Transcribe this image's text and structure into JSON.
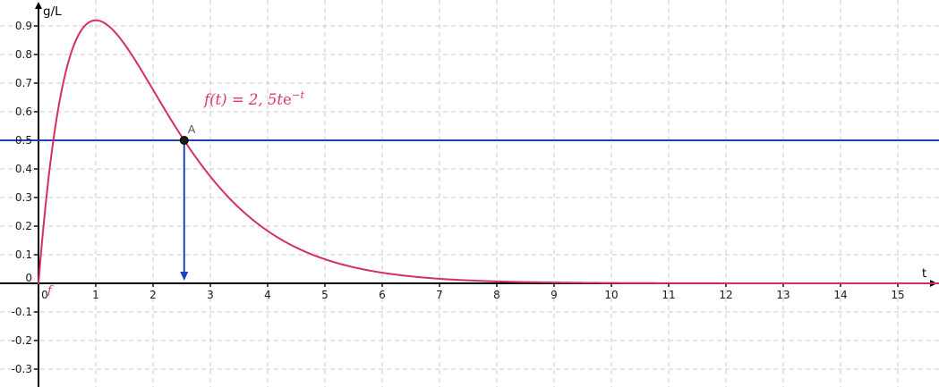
{
  "app": {
    "background": "#ffffff"
  },
  "chart_data": {
    "type": "line",
    "title": "",
    "xlabel": "t",
    "ylabel": "g/L",
    "xlim": [
      -0.67,
      15.72
    ],
    "ylim": [
      -0.363,
      0.98
    ],
    "grid": true,
    "x_ticks": [
      "0",
      "1",
      "2",
      "3",
      "4",
      "5",
      "6",
      "7",
      "8",
      "9",
      "10",
      "11",
      "12",
      "13",
      "14",
      "15"
    ],
    "y_ticks": [
      "-0.3",
      "-0.2",
      "-0.1",
      "0",
      "0.1",
      "0.2",
      "0.3",
      "0.4",
      "0.5",
      "0.6",
      "0.7",
      "0.8",
      "0.9"
    ],
    "series": [
      {
        "name": "f",
        "label": "f(t) = 2, 5te^(-t)",
        "type": "function",
        "amplitude": 2.5,
        "color": "#d5305c",
        "points": [
          [
            0,
            0
          ],
          [
            0.25,
            0.4868
          ],
          [
            0.5,
            0.7582
          ],
          [
            0.75,
            0.8857
          ],
          [
            1,
            0.9197
          ],
          [
            1.25,
            0.8956
          ],
          [
            1.5,
            0.8367
          ],
          [
            1.75,
            0.7598
          ],
          [
            2,
            0.6767
          ],
          [
            2.25,
            0.5935
          ],
          [
            2.5,
            0.513
          ],
          [
            2.75,
            0.4394
          ],
          [
            3,
            0.3734
          ],
          [
            3.5,
            0.2642
          ],
          [
            4,
            0.1832
          ],
          [
            4.5,
            0.125
          ],
          [
            5,
            0.0842
          ],
          [
            5.5,
            0.0562
          ],
          [
            6,
            0.0372
          ],
          [
            6.5,
            0.0244
          ],
          [
            7,
            0.0159
          ],
          [
            7.5,
            0.0104
          ],
          [
            8,
            0.0067
          ],
          [
            9,
            0.0028
          ],
          [
            10,
            0.0011
          ],
          [
            11,
            0.0005
          ],
          [
            12,
            0.0002
          ],
          [
            13,
            0.0001
          ],
          [
            14,
            0
          ],
          [
            15,
            0
          ]
        ]
      },
      {
        "name": "horizontal-line",
        "label": "y = 0.5",
        "type": "hline",
        "y": 0.5,
        "color": "#1f41be"
      }
    ],
    "point": {
      "label": "A",
      "x": 2.543,
      "y": 0.5,
      "color": "#1a1a1a",
      "label_color": "#5a5a5a"
    },
    "arrow": {
      "from": [
        2.543,
        0.5
      ],
      "to": [
        2.543,
        0.01
      ],
      "color": "#1f41be"
    },
    "curve_tag": {
      "text": "f",
      "color": "#d5305c"
    }
  },
  "labels": {
    "y_axis": "g/L",
    "x_axis": "t",
    "function_label": {
      "text": "f(t) = 2, 5te⁻ᵗ",
      "base": "f(t) = 2, 5t",
      "euler": "e",
      "sup": "−t",
      "color": "#e0336a"
    },
    "point_label": "A",
    "curve_tag": "f"
  },
  "colors": {
    "axis": "#000000",
    "grid": "#cbcbcb",
    "tick_text": "#1a1a1a"
  }
}
